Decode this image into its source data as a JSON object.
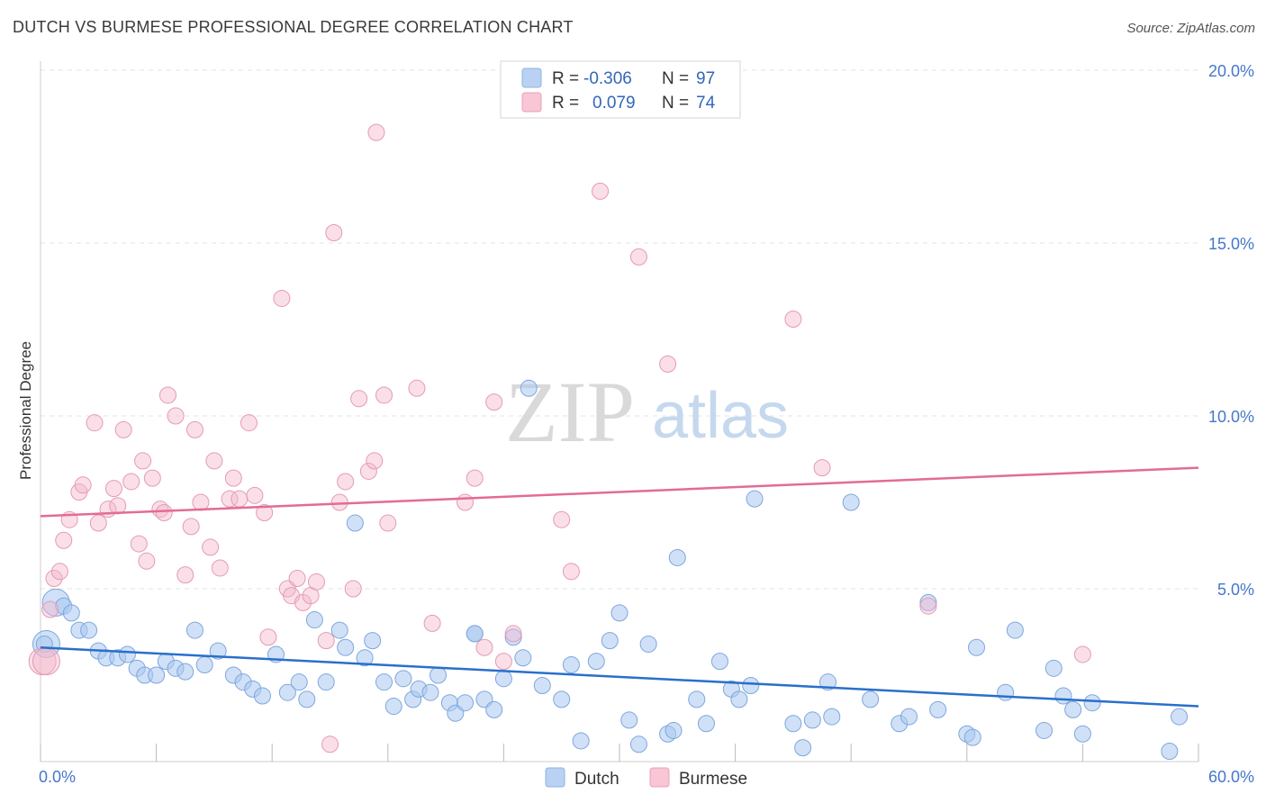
{
  "chart_data": {
    "type": "scatter",
    "title": "DUTCH VS BURMESE PROFESSIONAL DEGREE CORRELATION CHART",
    "source": "Source: ZipAtlas.com",
    "xlabel": "",
    "ylabel": "Professional Degree",
    "xlim": [
      0,
      60
    ],
    "ylim": [
      0,
      20
    ],
    "x_tick_labels": [
      "0.0%",
      "60.0%"
    ],
    "y_ticks": [
      5,
      10,
      15,
      20
    ],
    "y_tick_labels": [
      "5.0%",
      "10.0%",
      "15.0%",
      "20.0%"
    ],
    "watermark": {
      "zip": "ZIP",
      "atlas": "atlas"
    },
    "colors": {
      "dutch_fill": "#a9c8f0",
      "dutch_line": "#2a6fcc",
      "burmese_fill": "#f5b8cb",
      "burmese_line": "#e36b95"
    },
    "legend": [
      {
        "r_label": "R =",
        "r_value": "-0.306",
        "n_label": "N =",
        "n_value": "97"
      },
      {
        "r_label": "R =",
        "r_value": "0.079",
        "n_label": "N =",
        "n_value": "74"
      }
    ],
    "series": [
      {
        "name": "Dutch",
        "trend": [
          [
            0,
            3.3
          ],
          [
            60,
            1.6
          ]
        ],
        "points": [
          [
            0.3,
            3.4
          ],
          [
            0.8,
            4.6
          ],
          [
            1.2,
            4.5
          ],
          [
            1.6,
            4.3
          ],
          [
            2.0,
            3.8
          ],
          [
            2.5,
            3.8
          ],
          [
            3.0,
            3.2
          ],
          [
            3.4,
            3.0
          ],
          [
            4.0,
            3.0
          ],
          [
            4.5,
            3.1
          ],
          [
            5.0,
            2.7
          ],
          [
            5.4,
            2.5
          ],
          [
            6.0,
            2.5
          ],
          [
            6.5,
            2.9
          ],
          [
            7.0,
            2.7
          ],
          [
            7.5,
            2.6
          ],
          [
            8.0,
            3.8
          ],
          [
            8.5,
            2.8
          ],
          [
            9.2,
            3.2
          ],
          [
            10.0,
            2.5
          ],
          [
            10.5,
            2.3
          ],
          [
            11.0,
            2.1
          ],
          [
            11.5,
            1.9
          ],
          [
            12.2,
            3.1
          ],
          [
            12.8,
            2.0
          ],
          [
            13.4,
            2.3
          ],
          [
            13.8,
            1.8
          ],
          [
            14.2,
            4.1
          ],
          [
            14.8,
            2.3
          ],
          [
            15.5,
            3.8
          ],
          [
            15.8,
            3.3
          ],
          [
            16.3,
            6.9
          ],
          [
            16.8,
            3.0
          ],
          [
            17.2,
            3.5
          ],
          [
            17.8,
            2.3
          ],
          [
            18.3,
            1.6
          ],
          [
            18.8,
            2.4
          ],
          [
            19.3,
            1.8
          ],
          [
            19.6,
            2.1
          ],
          [
            20.2,
            2.0
          ],
          [
            20.6,
            2.5
          ],
          [
            21.2,
            1.7
          ],
          [
            21.5,
            1.4
          ],
          [
            22.0,
            1.7
          ],
          [
            22.5,
            3.7
          ],
          [
            23.0,
            1.8
          ],
          [
            23.5,
            1.5
          ],
          [
            24.0,
            2.4
          ],
          [
            24.5,
            3.6
          ],
          [
            25.0,
            3.0
          ],
          [
            25.3,
            10.8
          ],
          [
            26.0,
            2.2
          ],
          [
            27.0,
            1.8
          ],
          [
            27.5,
            2.8
          ],
          [
            28.0,
            0.6
          ],
          [
            28.8,
            2.9
          ],
          [
            29.5,
            3.5
          ],
          [
            30.0,
            4.3
          ],
          [
            30.5,
            1.2
          ],
          [
            31.0,
            0.5
          ],
          [
            31.5,
            3.4
          ],
          [
            32.5,
            0.8
          ],
          [
            32.8,
            0.9
          ],
          [
            33.0,
            5.9
          ],
          [
            34.0,
            1.8
          ],
          [
            34.5,
            1.1
          ],
          [
            35.2,
            2.9
          ],
          [
            35.8,
            2.1
          ],
          [
            36.2,
            1.8
          ],
          [
            36.8,
            2.2
          ],
          [
            37.0,
            7.6
          ],
          [
            39.0,
            1.1
          ],
          [
            39.5,
            0.4
          ],
          [
            40.0,
            1.2
          ],
          [
            40.8,
            2.3
          ],
          [
            41.0,
            1.3
          ],
          [
            42.0,
            7.5
          ],
          [
            43.0,
            1.8
          ],
          [
            44.5,
            1.1
          ],
          [
            45.0,
            1.3
          ],
          [
            46.0,
            4.6
          ],
          [
            46.5,
            1.5
          ],
          [
            48.0,
            0.8
          ],
          [
            48.3,
            0.7
          ],
          [
            48.5,
            3.3
          ],
          [
            50.0,
            2.0
          ],
          [
            50.5,
            3.8
          ],
          [
            52.0,
            0.9
          ],
          [
            52.5,
            2.7
          ],
          [
            53.0,
            1.9
          ],
          [
            53.5,
            1.5
          ],
          [
            54.0,
            0.8
          ],
          [
            54.5,
            1.7
          ],
          [
            58.5,
            0.3
          ],
          [
            59.0,
            1.3
          ],
          [
            0.2,
            3.4
          ],
          [
            22.5,
            3.7
          ]
        ]
      },
      {
        "name": "Burmese",
        "trend": [
          [
            0,
            7.1
          ],
          [
            60,
            8.5
          ]
        ],
        "points": [
          [
            0.1,
            2.9
          ],
          [
            0.5,
            4.4
          ],
          [
            0.7,
            5.3
          ],
          [
            1.0,
            5.5
          ],
          [
            1.2,
            6.4
          ],
          [
            1.5,
            7.0
          ],
          [
            2.0,
            7.8
          ],
          [
            2.2,
            8.0
          ],
          [
            2.8,
            9.8
          ],
          [
            3.0,
            6.9
          ],
          [
            3.5,
            7.3
          ],
          [
            3.8,
            7.9
          ],
          [
            4.0,
            7.4
          ],
          [
            4.3,
            9.6
          ],
          [
            4.7,
            8.1
          ],
          [
            5.1,
            6.3
          ],
          [
            5.3,
            8.7
          ],
          [
            5.5,
            5.8
          ],
          [
            5.8,
            8.2
          ],
          [
            6.2,
            7.3
          ],
          [
            6.4,
            7.2
          ],
          [
            6.6,
            10.6
          ],
          [
            7.0,
            10.0
          ],
          [
            7.5,
            5.4
          ],
          [
            7.8,
            6.8
          ],
          [
            8.0,
            9.6
          ],
          [
            8.3,
            7.5
          ],
          [
            8.8,
            6.2
          ],
          [
            9.0,
            8.7
          ],
          [
            9.3,
            5.6
          ],
          [
            9.8,
            7.6
          ],
          [
            10.0,
            8.2
          ],
          [
            10.3,
            7.6
          ],
          [
            10.8,
            9.8
          ],
          [
            11.1,
            7.7
          ],
          [
            11.6,
            7.2
          ],
          [
            11.8,
            3.6
          ],
          [
            12.5,
            13.4
          ],
          [
            12.8,
            5.0
          ],
          [
            13.0,
            4.8
          ],
          [
            13.3,
            5.3
          ],
          [
            13.6,
            4.6
          ],
          [
            14.0,
            4.8
          ],
          [
            14.3,
            5.2
          ],
          [
            14.8,
            3.5
          ],
          [
            15.5,
            7.5
          ],
          [
            15.8,
            8.1
          ],
          [
            16.2,
            5.0
          ],
          [
            16.5,
            10.5
          ],
          [
            17.0,
            8.4
          ],
          [
            17.3,
            8.7
          ],
          [
            17.8,
            10.6
          ],
          [
            18.0,
            6.9
          ],
          [
            15.2,
            15.3
          ],
          [
            17.4,
            18.2
          ],
          [
            19.5,
            10.8
          ],
          [
            20.3,
            4.0
          ],
          [
            22.0,
            7.5
          ],
          [
            22.5,
            8.2
          ],
          [
            23.0,
            3.3
          ],
          [
            23.5,
            10.4
          ],
          [
            24.0,
            2.9
          ],
          [
            24.5,
            3.7
          ],
          [
            27.0,
            7.0
          ],
          [
            27.5,
            5.5
          ],
          [
            29.0,
            16.5
          ],
          [
            31.0,
            14.6
          ],
          [
            32.5,
            11.5
          ],
          [
            39.0,
            12.8
          ],
          [
            40.5,
            8.5
          ],
          [
            46.0,
            4.5
          ],
          [
            54.0,
            3.1
          ],
          [
            15.0,
            0.5
          ],
          [
            0.3,
            2.9
          ]
        ]
      }
    ]
  }
}
